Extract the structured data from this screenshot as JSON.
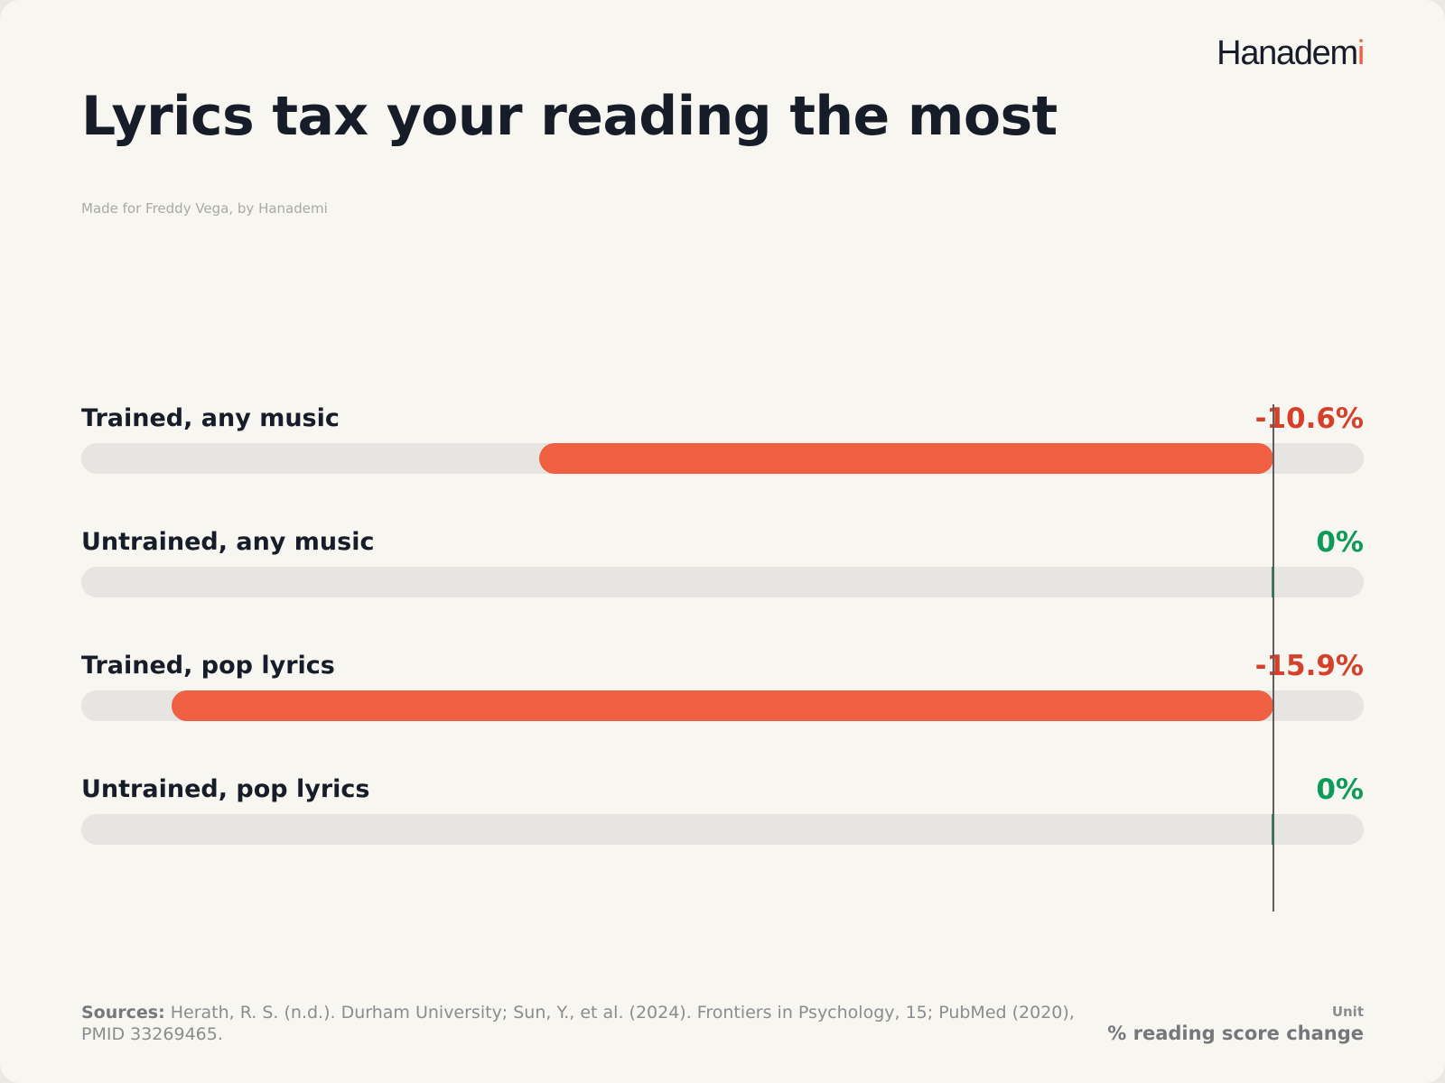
{
  "brand": {
    "name_main": "Hanadem",
    "name_accent": "i"
  },
  "title": "Lyrics tax your reading the most",
  "credit": "Made for Freddy Vega, by Hanademi",
  "colors": {
    "negative": "#ef5f42",
    "negative_text": "#d6402a",
    "positive": "#14a05e",
    "positive_text": "#0e9a59",
    "track": "#e6e5e1",
    "zero_line": "#5d5d60"
  },
  "chart_data": {
    "type": "bar",
    "orientation": "horizontal",
    "categories": [
      "Trained, any music",
      "Untrained, any music",
      "Trained, pop lyrics",
      "Untrained, pop lyrics"
    ],
    "values": [
      -10.6,
      0,
      -15.9,
      0
    ],
    "value_labels": [
      "-10.6%",
      "0%",
      "-15.9%",
      "0%"
    ],
    "xlim": [
      -17.2,
      1.3
    ],
    "zero_line": 0,
    "grid": false,
    "legend": "none"
  },
  "footer": {
    "sources_label": "Sources:",
    "sources_text": "Herath, R. S. (n.d.). Durham University; Sun, Y., et al. (2024). Frontiers in Psychology, 15; PubMed (2020), PMID 33269465.",
    "unit_label": "Unit",
    "unit_value": "% reading score change"
  }
}
